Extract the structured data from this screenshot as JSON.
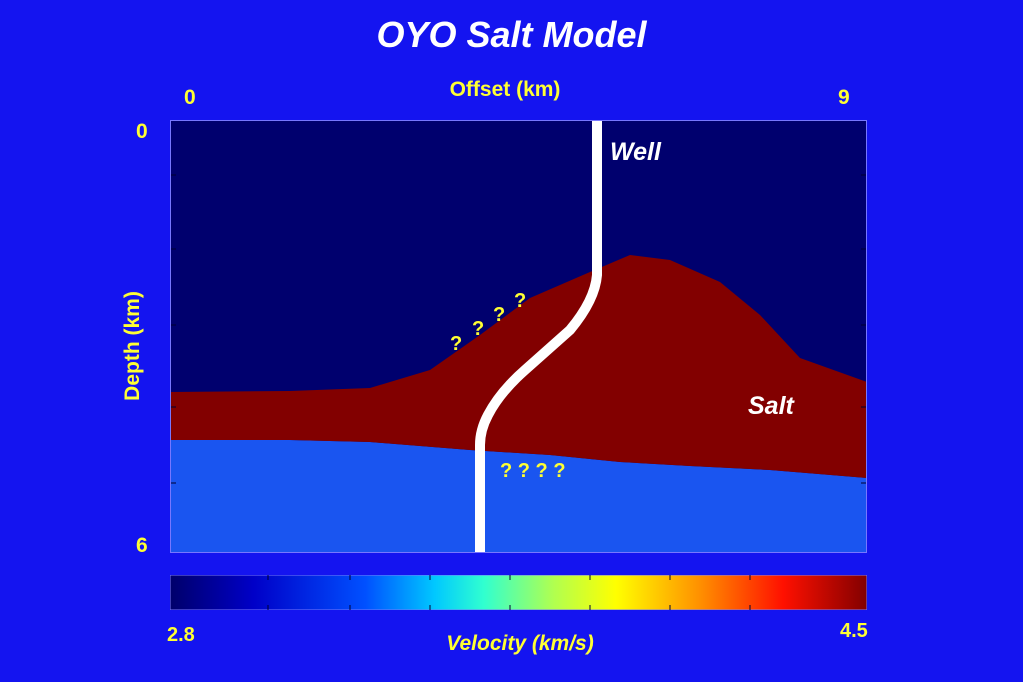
{
  "title": "OYO Salt Model",
  "x_axis": {
    "label": "Offset (km)",
    "min_label": "0",
    "max_label": "9"
  },
  "y_axis": {
    "label": "Depth (km)",
    "min_label": "0",
    "max_label": "6"
  },
  "labels": {
    "well": "Well",
    "salt": "Salt",
    "question_upper": [
      "?",
      "?",
      "?",
      "?"
    ],
    "question_lower": "? ? ? ?"
  },
  "colorbar": {
    "min_label": "2.8",
    "max_label": "4.5",
    "title": "Velocity (km/s)"
  },
  "colors": {
    "background": "#1414f0",
    "sediment_upper": "#00006e",
    "salt": "#820000",
    "sediment_lower": "#1a55f0",
    "well": "#ffffff",
    "label_yellow": "#ffff33"
  }
}
